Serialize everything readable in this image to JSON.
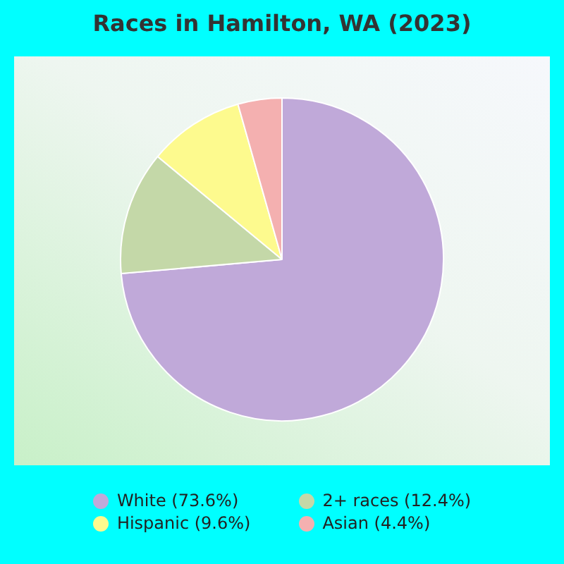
{
  "chart_data": {
    "type": "pie",
    "title": "Races in Hamilton, WA (2023)",
    "categories": [
      "White (73.6%)",
      "2+ races (12.4%)",
      "Hispanic (9.6%)",
      "Asian (4.4%)"
    ],
    "values": [
      73.6,
      12.4,
      9.6,
      4.4
    ],
    "colors": [
      "#c0a9d9",
      "#c4d8a8",
      "#fdfa8e",
      "#f4b0b0"
    ],
    "legend": "bottom"
  }
}
